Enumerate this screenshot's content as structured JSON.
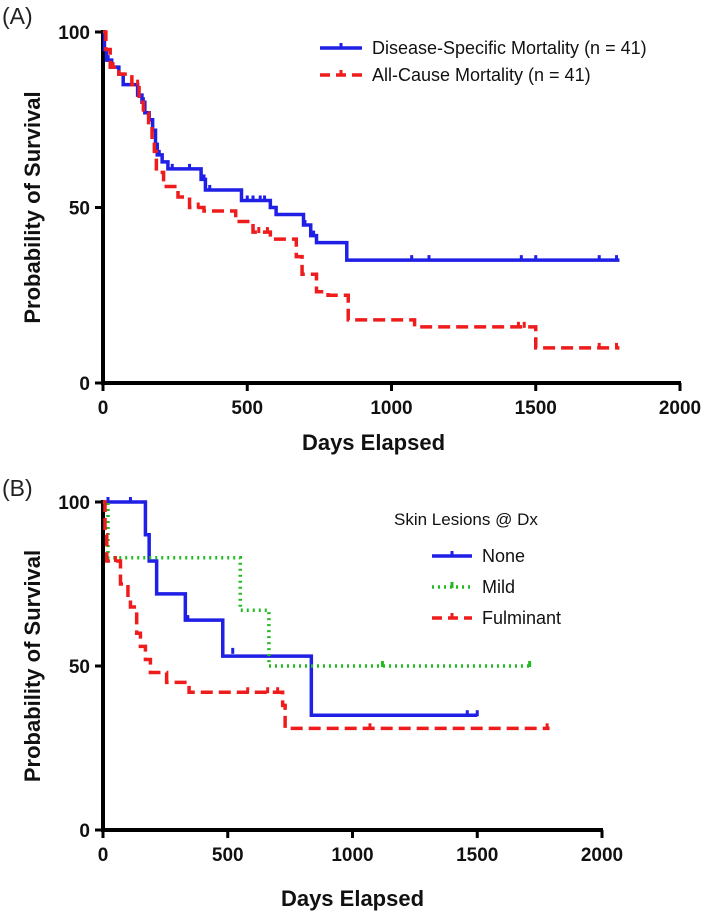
{
  "chart_data": [
    {
      "panel": "(A)",
      "type": "line",
      "subtype": "kaplan-meier",
      "xlabel": "Days Elapsed",
      "ylabel": "Probability of Survival",
      "xlim": [
        0,
        2000
      ],
      "ylim": [
        0,
        100
      ],
      "xticks": [
        0,
        500,
        1000,
        1500,
        2000
      ],
      "yticks": [
        0,
        50,
        100
      ],
      "legend_title": "",
      "series": [
        {
          "name": "Disease-Specific Mortality (n = 41)",
          "color": "#1f1fe6",
          "dash": "solid",
          "steps": [
            [
              0,
              100
            ],
            [
              5,
              95
            ],
            [
              12,
              92
            ],
            [
              30,
              90
            ],
            [
              55,
              88
            ],
            [
              70,
              85
            ],
            [
              115,
              85
            ],
            [
              120,
              82
            ],
            [
              135,
              80
            ],
            [
              145,
              77
            ],
            [
              160,
              75
            ],
            [
              172,
              72
            ],
            [
              182,
              68
            ],
            [
              188,
              65
            ],
            [
              205,
              63
            ],
            [
              225,
              61
            ],
            [
              330,
              61
            ],
            [
              340,
              58
            ],
            [
              355,
              55
            ],
            [
              470,
              55
            ],
            [
              480,
              52
            ],
            [
              580,
              50
            ],
            [
              600,
              48
            ],
            [
              680,
              48
            ],
            [
              695,
              45
            ],
            [
              720,
              42
            ],
            [
              740,
              40
            ],
            [
              840,
              40
            ],
            [
              845,
              35
            ],
            [
              1790,
              35
            ]
          ],
          "censored": [
            [
              18,
              92
            ],
            [
              140,
              80
            ],
            [
              195,
              65
            ],
            [
              240,
              61
            ],
            [
              300,
              61
            ],
            [
              350,
              58
            ],
            [
              370,
              55
            ],
            [
              500,
              52
            ],
            [
              520,
              52
            ],
            [
              545,
              52
            ],
            [
              560,
              52
            ],
            [
              700,
              45
            ],
            [
              730,
              42
            ],
            [
              1070,
              35
            ],
            [
              1130,
              35
            ],
            [
              1450,
              35
            ],
            [
              1500,
              35
            ],
            [
              1720,
              35
            ],
            [
              1780,
              35
            ]
          ]
        },
        {
          "name": "All-Cause Mortality (n = 41)",
          "color": "#ee1c1c",
          "dash": "dashed",
          "steps": [
            [
              0,
              100
            ],
            [
              10,
              95
            ],
            [
              25,
              90
            ],
            [
              55,
              88
            ],
            [
              100,
              85
            ],
            [
              118,
              85
            ],
            [
              125,
              80
            ],
            [
              140,
              77
            ],
            [
              158,
              73
            ],
            [
              170,
              70
            ],
            [
              178,
              66
            ],
            [
              185,
              60
            ],
            [
              200,
              60
            ],
            [
              210,
              56
            ],
            [
              260,
              53
            ],
            [
              290,
              53
            ],
            [
              300,
              50
            ],
            [
              310,
              50
            ],
            [
              350,
              49
            ],
            [
              440,
              49
            ],
            [
              460,
              46
            ],
            [
              520,
              43
            ],
            [
              580,
              41
            ],
            [
              670,
              36
            ],
            [
              690,
              31
            ],
            [
              740,
              26
            ],
            [
              780,
              25
            ],
            [
              840,
              25
            ],
            [
              850,
              18
            ],
            [
              1060,
              18
            ],
            [
              1080,
              16
            ],
            [
              1480,
              16
            ],
            [
              1500,
              10
            ],
            [
              1790,
              10
            ]
          ],
          "censored": [
            [
              35,
              90
            ],
            [
              120,
              85
            ],
            [
              330,
              50
            ],
            [
              540,
              43
            ],
            [
              570,
              43
            ],
            [
              1440,
              16
            ],
            [
              1460,
              16
            ],
            [
              1720,
              10
            ],
            [
              1780,
              10
            ]
          ]
        }
      ]
    },
    {
      "panel": "(B)",
      "type": "line",
      "subtype": "kaplan-meier",
      "xlabel": "Days Elapsed",
      "ylabel": "Probability of Survival",
      "xlim": [
        0,
        2000
      ],
      "ylim": [
        0,
        100
      ],
      "xticks": [
        0,
        500,
        1000,
        1500,
        2000
      ],
      "yticks": [
        0,
        50,
        100
      ],
      "legend_title": "Skin Lesions @ Dx",
      "series": [
        {
          "name": "None",
          "color": "#1f1fe6",
          "dash": "solid",
          "steps": [
            [
              0,
              100
            ],
            [
              160,
              100
            ],
            [
              170,
              90
            ],
            [
              185,
              82
            ],
            [
              210,
              82
            ],
            [
              215,
              72
            ],
            [
              320,
              72
            ],
            [
              330,
              64
            ],
            [
              470,
              64
            ],
            [
              480,
              53
            ],
            [
              830,
              53
            ],
            [
              835,
              35
            ],
            [
              1500,
              35
            ]
          ],
          "censored": [
            [
              20,
              100
            ],
            [
              110,
              100
            ],
            [
              340,
              64
            ],
            [
              520,
              54
            ],
            [
              1460,
              35
            ],
            [
              1500,
              35
            ]
          ]
        },
        {
          "name": "Mild",
          "color": "#22bb22",
          "dash": "dotted",
          "steps": [
            [
              0,
              100
            ],
            [
              20,
              83
            ],
            [
              545,
              83
            ],
            [
              550,
              67
            ],
            [
              660,
              67
            ],
            [
              665,
              50
            ],
            [
              1720,
              50
            ]
          ],
          "censored": [
            [
              1120,
              50
            ],
            [
              1710,
              50
            ]
          ]
        },
        {
          "name": "Fulminant",
          "color": "#ee1c1c",
          "dash": "dashed",
          "steps": [
            [
              0,
              100
            ],
            [
              8,
              90
            ],
            [
              15,
              82
            ],
            [
              60,
              82
            ],
            [
              70,
              75
            ],
            [
              100,
              70
            ],
            [
              110,
              68
            ],
            [
              135,
              60
            ],
            [
              150,
              56
            ],
            [
              170,
              52
            ],
            [
              190,
              48
            ],
            [
              240,
              48
            ],
            [
              255,
              45
            ],
            [
              300,
              45
            ],
            [
              345,
              42
            ],
            [
              640,
              42
            ],
            [
              720,
              38
            ],
            [
              730,
              31
            ],
            [
              1790,
              31
            ]
          ],
          "censored": [
            [
              50,
              82
            ],
            [
              580,
              42
            ],
            [
              660,
              42
            ],
            [
              700,
              42
            ],
            [
              1070,
              31
            ],
            [
              1780,
              31
            ]
          ]
        }
      ]
    }
  ],
  "panel_a": {
    "label": "(A)"
  },
  "panel_b": {
    "label": "(B)"
  }
}
